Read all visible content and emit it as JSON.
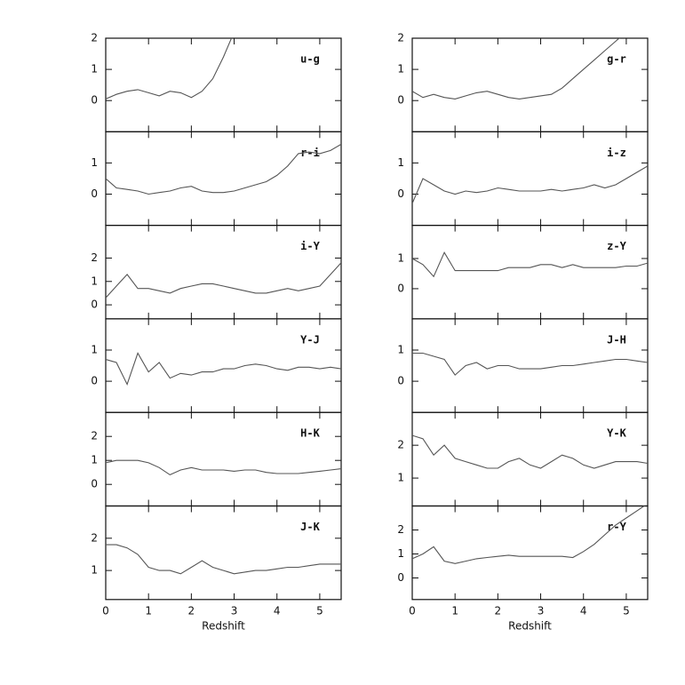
{
  "chart_data": [
    {
      "type": "line",
      "label": "u-g",
      "color": "#555555",
      "x": [
        0,
        0.25,
        0.5,
        0.75,
        1,
        1.25,
        1.5,
        1.75,
        2,
        2.25,
        2.5,
        2.75,
        3,
        3.25,
        3.5,
        3.75,
        4,
        4.25,
        4.5,
        4.75,
        5,
        5.25,
        5.5
      ],
      "values": [
        0.05,
        0.2,
        0.3,
        0.35,
        0.25,
        0.15,
        0.3,
        0.25,
        0.1,
        0.3,
        0.7,
        1.4,
        2.2,
        null,
        null,
        null,
        null,
        null,
        null,
        null,
        null,
        null,
        null
      ],
      "xlim": [
        0,
        5.5
      ],
      "xticks": [
        0,
        1,
        2,
        3,
        4,
        5
      ],
      "ylim": [
        -1,
        2
      ],
      "yticks": [
        0,
        1,
        2
      ]
    },
    {
      "type": "line",
      "label": "g-r",
      "color": "#555555",
      "x": [
        0,
        0.25,
        0.5,
        0.75,
        1,
        1.25,
        1.5,
        1.75,
        2,
        2.25,
        2.5,
        2.75,
        3,
        3.25,
        3.5,
        3.75,
        4,
        4.25,
        4.5,
        4.75,
        5,
        5.25,
        5.5
      ],
      "values": [
        0.3,
        0.1,
        0.2,
        0.1,
        0.05,
        0.15,
        0.25,
        0.3,
        0.2,
        0.1,
        0.05,
        0.1,
        0.15,
        0.2,
        0.4,
        0.7,
        1.0,
        1.3,
        1.6,
        1.9,
        2.2,
        null,
        null
      ],
      "xlim": [
        0,
        5.5
      ],
      "xticks": [
        0,
        1,
        2,
        3,
        4,
        5
      ],
      "ylim": [
        -1,
        2
      ],
      "yticks": [
        0,
        1,
        2
      ]
    },
    {
      "type": "line",
      "label": "r-i",
      "color": "#555555",
      "x": [
        0,
        0.25,
        0.5,
        0.75,
        1,
        1.25,
        1.5,
        1.75,
        2,
        2.25,
        2.5,
        2.75,
        3,
        3.25,
        3.5,
        3.75,
        4,
        4.25,
        4.5,
        4.75,
        5,
        5.25,
        5.5
      ],
      "values": [
        0.5,
        0.2,
        0.15,
        0.1,
        0.0,
        0.05,
        0.1,
        0.2,
        0.25,
        0.1,
        0.05,
        0.05,
        0.1,
        0.2,
        0.3,
        0.4,
        0.6,
        0.9,
        1.3,
        1.35,
        1.3,
        1.4,
        1.6
      ],
      "xlim": [
        0,
        5.5
      ],
      "xticks": [
        0,
        1,
        2,
        3,
        4,
        5
      ],
      "ylim": [
        -1,
        2
      ],
      "yticks": [
        0,
        1
      ]
    },
    {
      "type": "line",
      "label": "i-z",
      "color": "#555555",
      "x": [
        0,
        0.25,
        0.5,
        0.75,
        1,
        1.25,
        1.5,
        1.75,
        2,
        2.25,
        2.5,
        2.75,
        3,
        3.25,
        3.5,
        3.75,
        4,
        4.25,
        4.5,
        4.75,
        5,
        5.25,
        5.5
      ],
      "values": [
        -0.3,
        0.5,
        0.3,
        0.1,
        0.0,
        0.1,
        0.05,
        0.1,
        0.2,
        0.15,
        0.1,
        0.1,
        0.1,
        0.15,
        0.1,
        0.15,
        0.2,
        0.3,
        0.2,
        0.3,
        0.5,
        0.7,
        0.9
      ],
      "xlim": [
        0,
        5.5
      ],
      "xticks": [
        0,
        1,
        2,
        3,
        4,
        5
      ],
      "ylim": [
        -1,
        2
      ],
      "yticks": [
        0,
        1
      ]
    },
    {
      "type": "line",
      "label": "i-Y",
      "color": "#555555",
      "x": [
        0,
        0.25,
        0.5,
        0.75,
        1,
        1.25,
        1.5,
        1.75,
        2,
        2.25,
        2.5,
        2.75,
        3,
        3.25,
        3.5,
        3.75,
        4,
        4.25,
        4.5,
        4.75,
        5,
        5.25,
        5.5
      ],
      "values": [
        0.3,
        0.8,
        1.3,
        0.7,
        0.7,
        0.6,
        0.5,
        0.7,
        0.8,
        0.9,
        0.9,
        0.8,
        0.7,
        0.6,
        0.5,
        0.5,
        0.6,
        0.7,
        0.6,
        0.7,
        0.8,
        1.3,
        1.8
      ],
      "xlim": [
        0,
        5.5
      ],
      "xticks": [
        0,
        1,
        2,
        3,
        4,
        5
      ],
      "ylim": [
        -0.6,
        3.4
      ],
      "yticks": [
        0,
        1,
        2
      ]
    },
    {
      "type": "line",
      "label": "z-Y",
      "color": "#555555",
      "x": [
        0,
        0.25,
        0.5,
        0.75,
        1,
        1.25,
        1.5,
        1.75,
        2,
        2.25,
        2.5,
        2.75,
        3,
        3.25,
        3.5,
        3.75,
        4,
        4.25,
        4.5,
        4.75,
        5,
        5.25,
        5.5
      ],
      "values": [
        1.0,
        0.8,
        0.4,
        1.2,
        0.6,
        0.6,
        0.6,
        0.6,
        0.6,
        0.7,
        0.7,
        0.7,
        0.8,
        0.8,
        0.7,
        0.8,
        0.7,
        0.7,
        0.7,
        0.7,
        0.75,
        0.75,
        0.85
      ],
      "xlim": [
        0,
        5.5
      ],
      "xticks": [
        0,
        1,
        2,
        3,
        4,
        5
      ],
      "ylim": [
        -1,
        2.1
      ],
      "yticks": [
        0,
        1
      ]
    },
    {
      "type": "line",
      "label": "Y-J",
      "color": "#555555",
      "x": [
        0,
        0.25,
        0.5,
        0.75,
        1,
        1.25,
        1.5,
        1.75,
        2,
        2.25,
        2.5,
        2.75,
        3,
        3.25,
        3.5,
        3.75,
        4,
        4.25,
        4.5,
        4.75,
        5,
        5.25,
        5.5
      ],
      "values": [
        0.7,
        0.6,
        -0.1,
        0.9,
        0.3,
        0.6,
        0.1,
        0.25,
        0.2,
        0.3,
        0.3,
        0.4,
        0.4,
        0.5,
        0.55,
        0.5,
        0.4,
        0.35,
        0.45,
        0.45,
        0.4,
        0.45,
        0.4
      ],
      "xlim": [
        0,
        5.5
      ],
      "xticks": [
        0,
        1,
        2,
        3,
        4,
        5
      ],
      "ylim": [
        -1,
        2
      ],
      "yticks": [
        0,
        1
      ]
    },
    {
      "type": "line",
      "label": "J-H",
      "color": "#555555",
      "x": [
        0,
        0.25,
        0.5,
        0.75,
        1,
        1.25,
        1.5,
        1.75,
        2,
        2.25,
        2.5,
        2.75,
        3,
        3.25,
        3.5,
        3.75,
        4,
        4.25,
        4.5,
        4.75,
        5,
        5.25,
        5.5
      ],
      "values": [
        0.9,
        0.9,
        0.8,
        0.7,
        0.2,
        0.5,
        0.6,
        0.4,
        0.5,
        0.5,
        0.4,
        0.4,
        0.4,
        0.45,
        0.5,
        0.5,
        0.55,
        0.6,
        0.65,
        0.7,
        0.7,
        0.65,
        0.6
      ],
      "xlim": [
        0,
        5.5
      ],
      "xticks": [
        0,
        1,
        2,
        3,
        4,
        5
      ],
      "ylim": [
        -1,
        2
      ],
      "yticks": [
        0,
        1
      ]
    },
    {
      "type": "line",
      "label": "H-K",
      "color": "#555555",
      "x": [
        0,
        0.25,
        0.5,
        0.75,
        1,
        1.25,
        1.5,
        1.75,
        2,
        2.25,
        2.5,
        2.75,
        3,
        3.25,
        3.5,
        3.75,
        4,
        4.25,
        4.5,
        4.75,
        5,
        5.25,
        5.5
      ],
      "values": [
        0.9,
        1.0,
        1.0,
        1.0,
        0.9,
        0.7,
        0.4,
        0.6,
        0.7,
        0.6,
        0.6,
        0.6,
        0.55,
        0.6,
        0.6,
        0.5,
        0.45,
        0.45,
        0.45,
        0.5,
        0.55,
        0.6,
        0.65
      ],
      "xlim": [
        0,
        5.5
      ],
      "xticks": [
        0,
        1,
        2,
        3,
        4,
        5
      ],
      "ylim": [
        -0.9,
        3
      ],
      "yticks": [
        0,
        1,
        2
      ]
    },
    {
      "type": "line",
      "label": "Y-K",
      "color": "#555555",
      "x": [
        0,
        0.25,
        0.5,
        0.75,
        1,
        1.25,
        1.5,
        1.75,
        2,
        2.25,
        2.5,
        2.75,
        3,
        3.25,
        3.5,
        3.75,
        4,
        4.25,
        4.5,
        4.75,
        5,
        5.25,
        5.5
      ],
      "values": [
        2.3,
        2.2,
        1.7,
        2.0,
        1.6,
        1.5,
        1.4,
        1.3,
        1.3,
        1.5,
        1.6,
        1.4,
        1.3,
        1.5,
        1.7,
        1.6,
        1.4,
        1.3,
        1.4,
        1.5,
        1.5,
        1.5,
        1.45
      ],
      "xlim": [
        0,
        5.5
      ],
      "xticks": [
        0,
        1,
        2,
        3,
        4,
        5
      ],
      "ylim": [
        0.15,
        3
      ],
      "yticks": [
        1,
        2
      ]
    },
    {
      "type": "line",
      "label": "J-K",
      "color": "#555555",
      "xlabel": "Redshift",
      "x": [
        0,
        0.25,
        0.5,
        0.75,
        1,
        1.25,
        1.5,
        1.75,
        2,
        2.25,
        2.5,
        2.75,
        3,
        3.25,
        3.5,
        3.75,
        4,
        4.25,
        4.5,
        4.75,
        5,
        5.25,
        5.5
      ],
      "values": [
        1.8,
        1.8,
        1.7,
        1.5,
        1.1,
        1.0,
        1.0,
        0.9,
        1.1,
        1.3,
        1.1,
        1.0,
        0.9,
        0.95,
        1.0,
        1.0,
        1.05,
        1.1,
        1.1,
        1.15,
        1.2,
        1.2,
        1.2
      ],
      "xlim": [
        0,
        5.5
      ],
      "xticks": [
        0,
        1,
        2,
        3,
        4,
        5
      ],
      "ylim": [
        0.1,
        3
      ],
      "yticks": [
        1,
        2
      ]
    },
    {
      "type": "line",
      "label": "r-Y",
      "color": "#555555",
      "xlabel": "Redshift",
      "x": [
        0,
        0.25,
        0.5,
        0.75,
        1,
        1.25,
        1.5,
        1.75,
        2,
        2.25,
        2.5,
        2.75,
        3,
        3.25,
        3.5,
        3.75,
        4,
        4.25,
        4.5,
        4.75,
        5,
        5.25,
        5.5
      ],
      "values": [
        0.8,
        1.0,
        1.3,
        0.7,
        0.6,
        0.7,
        0.8,
        0.85,
        0.9,
        0.95,
        0.9,
        0.9,
        0.9,
        0.9,
        0.9,
        0.85,
        1.1,
        1.4,
        1.8,
        2.2,
        2.5,
        2.8,
        3.1
      ],
      "xlim": [
        0,
        5.5
      ],
      "xticks": [
        0,
        1,
        2,
        3,
        4,
        5
      ],
      "ylim": [
        -0.9,
        3
      ],
      "yticks": [
        0,
        1,
        2
      ]
    }
  ]
}
